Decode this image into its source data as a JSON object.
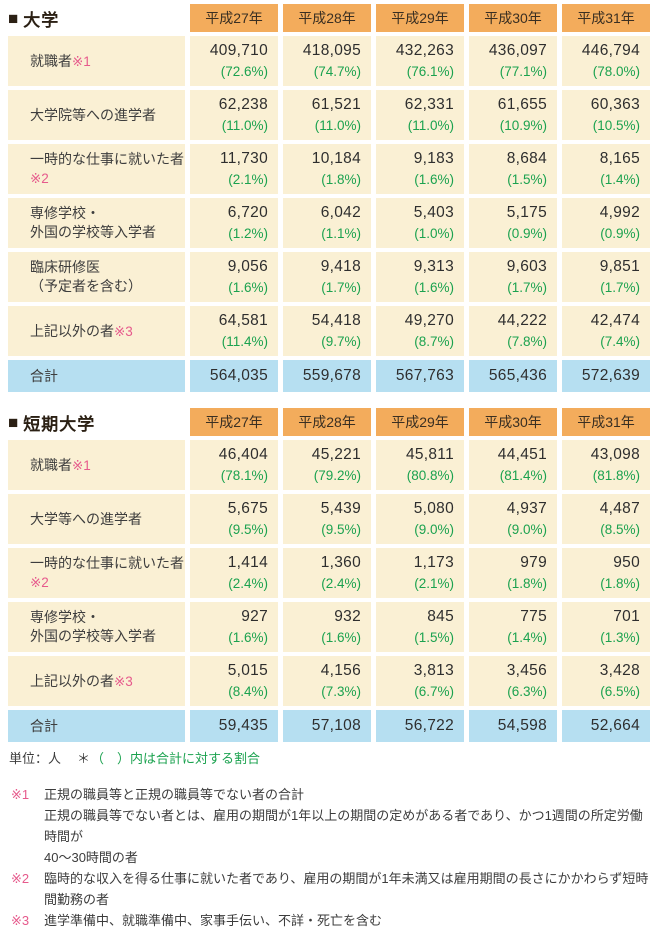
{
  "colors": {
    "header_bg": "#F3AC5C",
    "cell_bg": "#FAF0D4",
    "total_bg": "#B6DFF1",
    "percent_green": "#1BA24F",
    "marker_pink": "#E65A8C"
  },
  "tables": [
    {
      "id": "university",
      "square": "■",
      "title": "大学",
      "years": [
        "平成27年",
        "平成28年",
        "平成29年",
        "平成30年",
        "平成31年"
      ],
      "rows": [
        {
          "label": "就職者",
          "marker": "※1",
          "marker_newline": false,
          "label2": "",
          "values": [
            "409,710",
            "418,095",
            "432,263",
            "436,097",
            "446,794"
          ],
          "percents": [
            "(72.6%)",
            "(74.7%)",
            "(76.1%)",
            "(77.1%)",
            "(78.0%)"
          ]
        },
        {
          "label": "大学院等への進学者",
          "marker": "",
          "marker_newline": false,
          "label2": "",
          "values": [
            "62,238",
            "61,521",
            "62,331",
            "61,655",
            "60,363"
          ],
          "percents": [
            "(11.0%)",
            "(11.0%)",
            "(11.0%)",
            "(10.9%)",
            "(10.5%)"
          ]
        },
        {
          "label": "一時的な仕事に就いた者",
          "marker": "※2",
          "marker_newline": true,
          "label2": "",
          "values": [
            "11,730",
            "10,184",
            "9,183",
            "8,684",
            "8,165"
          ],
          "percents": [
            "(2.1%)",
            "(1.8%)",
            "(1.6%)",
            "(1.5%)",
            "(1.4%)"
          ]
        },
        {
          "label": "専修学校・",
          "marker": "",
          "marker_newline": false,
          "label2": "外国の学校等入学者",
          "values": [
            "6,720",
            "6,042",
            "5,403",
            "5,175",
            "4,992"
          ],
          "percents": [
            "(1.2%)",
            "(1.1%)",
            "(1.0%)",
            "(0.9%)",
            "(0.9%)"
          ]
        },
        {
          "label": "臨床研修医",
          "marker": "",
          "marker_newline": false,
          "label2": "（予定者を含む）",
          "values": [
            "9,056",
            "9,418",
            "9,313",
            "9,603",
            "9,851"
          ],
          "percents": [
            "(1.6%)",
            "(1.7%)",
            "(1.6%)",
            "(1.7%)",
            "(1.7%)"
          ]
        },
        {
          "label": "上記以外の者",
          "marker": "※3",
          "marker_newline": false,
          "label2": "",
          "values": [
            "64,581",
            "54,418",
            "49,270",
            "44,222",
            "42,474"
          ],
          "percents": [
            "(11.4%)",
            "(9.7%)",
            "(8.7%)",
            "(7.8%)",
            "(7.4%)"
          ]
        }
      ],
      "total_label": "合計",
      "totals": [
        "564,035",
        "559,678",
        "567,763",
        "565,436",
        "572,639"
      ]
    },
    {
      "id": "junior-college",
      "square": "■",
      "title": "短期大学",
      "years": [
        "平成27年",
        "平成28年",
        "平成29年",
        "平成30年",
        "平成31年"
      ],
      "rows": [
        {
          "label": "就職者",
          "marker": "※1",
          "marker_newline": false,
          "label2": "",
          "values": [
            "46,404",
            "45,221",
            "45,811",
            "44,451",
            "43,098"
          ],
          "percents": [
            "(78.1%)",
            "(79.2%)",
            "(80.8%)",
            "(81.4%)",
            "(81.8%)"
          ]
        },
        {
          "label": "大学等への進学者",
          "marker": "",
          "marker_newline": false,
          "label2": "",
          "values": [
            "5,675",
            "5,439",
            "5,080",
            "4,937",
            "4,487"
          ],
          "percents": [
            "(9.5%)",
            "(9.5%)",
            "(9.0%)",
            "(9.0%)",
            "(8.5%)"
          ]
        },
        {
          "label": "一時的な仕事に就いた者",
          "marker": "※2",
          "marker_newline": true,
          "label2": "",
          "values": [
            "1,414",
            "1,360",
            "1,173",
            "979",
            "950"
          ],
          "percents": [
            "(2.4%)",
            "(2.4%)",
            "(2.1%)",
            "(1.8%)",
            "(1.8%)"
          ]
        },
        {
          "label": "専修学校・",
          "marker": "",
          "marker_newline": false,
          "label2": "外国の学校等入学者",
          "values": [
            "927",
            "932",
            "845",
            "775",
            "701"
          ],
          "percents": [
            "(1.6%)",
            "(1.6%)",
            "(1.5%)",
            "(1.4%)",
            "(1.3%)"
          ]
        },
        {
          "label": "上記以外の者",
          "marker": "※3",
          "marker_newline": false,
          "label2": "",
          "values": [
            "5,015",
            "4,156",
            "3,813",
            "3,456",
            "3,428"
          ],
          "percents": [
            "(8.4%)",
            "(7.3%)",
            "(6.7%)",
            "(6.3%)",
            "(6.5%)"
          ]
        }
      ],
      "total_label": "合計",
      "totals": [
        "59,435",
        "57,108",
        "56,722",
        "54,598",
        "52,664"
      ]
    }
  ],
  "footer": {
    "unit_label": "単位：人",
    "unit_note_star": "＊",
    "unit_note": "（　）内は合計に対する割合",
    "notes": [
      {
        "marker": "※1",
        "lines": [
          "正規の職員等と正規の職員等でない者の合計",
          "正規の職員等でない者とは、雇用の期間が1年以上の期間の定めがある者であり、かつ1週間の所定労働時間が",
          "40～30時間の者"
        ]
      },
      {
        "marker": "※2",
        "lines": [
          "臨時的な収入を得る仕事に就いた者であり、雇用の期間が1年未満又は雇用期間の長さにかかわらず短時間勤務の者"
        ]
      },
      {
        "marker": "※3",
        "lines": [
          "進学準備中、就職準備中、家事手伝い、不詳・死亡を含む"
        ]
      }
    ]
  }
}
